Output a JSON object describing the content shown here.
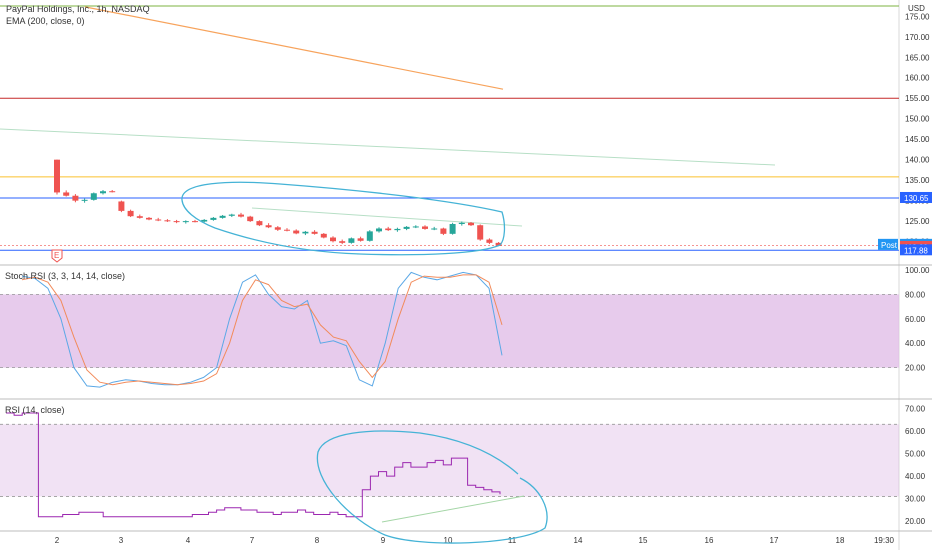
{
  "header": {
    "main_title": "PayPal Holdings, Inc., 1h, NASDAQ",
    "main_indicator": "EMA (200, close, 0)",
    "currency": "USD",
    "stoch_title": "Stoch RSI (3, 3, 14, 14, close)",
    "rsi_title": "RSI (14, close)",
    "earnings_marker": "E"
  },
  "colors": {
    "up": "#26a69a",
    "down": "#ef5350",
    "ema": "#f7a35c",
    "stoch_k": "#5ba8e6",
    "stoch_d": "#f28b5b",
    "rsi": "#9c27b0",
    "band": "#e1bee7",
    "annotation": "#45b3d6"
  },
  "chart_data": [
    {
      "type": "candlestick",
      "title": "PayPal Holdings, Inc., 1h, NASDAQ",
      "ylim": [
        116,
        178
      ],
      "y_ticks": [
        120,
        125,
        130,
        135,
        140,
        145,
        150,
        155,
        160,
        165,
        170,
        175
      ],
      "x_ticks": [
        "2",
        "3",
        "4",
        "7",
        "8",
        "9",
        "10",
        "11",
        "14",
        "15",
        "16",
        "17",
        "18",
        "19:30"
      ],
      "price_tags": [
        {
          "label": "130.65",
          "value": 130.65,
          "color": "#2962ff"
        },
        {
          "label": "Post",
          "value": 119.21,
          "color": "#2196f3"
        },
        {
          "label": "119.21",
          "value": 119.21,
          "color": "#2196f3"
        },
        {
          "label": "119.00",
          "value": 118.7,
          "color": "#ef5350"
        },
        {
          "label": "117.88",
          "value": 117.88,
          "color": "#2962ff"
        }
      ],
      "horizontal_lines": [
        {
          "value": 177.5,
          "color": "#7cb342"
        },
        {
          "value": 155.0,
          "color": "#c62828"
        },
        {
          "value": 135.8,
          "color": "#fbc02d"
        },
        {
          "value": 130.65,
          "color": "#2962ff"
        },
        {
          "value": 117.88,
          "color": "#2962ff"
        }
      ],
      "candles": [
        {
          "o": 140.0,
          "h": 140.0,
          "l": 131.5,
          "c": 132.0
        },
        {
          "o": 132.0,
          "h": 132.5,
          "l": 131.0,
          "c": 131.2
        },
        {
          "o": 131.2,
          "h": 131.6,
          "l": 129.6,
          "c": 130.0
        },
        {
          "o": 130.0,
          "h": 130.5,
          "l": 129.5,
          "c": 130.2
        },
        {
          "o": 130.2,
          "h": 132.0,
          "l": 130.0,
          "c": 131.8
        },
        {
          "o": 131.8,
          "h": 132.6,
          "l": 131.5,
          "c": 132.3
        },
        {
          "o": 132.3,
          "h": 132.6,
          "l": 132.0,
          "c": 132.1
        },
        {
          "o": 129.8,
          "h": 130.0,
          "l": 127.2,
          "c": 127.5
        },
        {
          "o": 127.5,
          "h": 127.8,
          "l": 126.0,
          "c": 126.2
        },
        {
          "o": 126.2,
          "h": 126.6,
          "l": 125.6,
          "c": 125.8
        },
        {
          "o": 125.8,
          "h": 126.0,
          "l": 125.2,
          "c": 125.4
        },
        {
          "o": 125.4,
          "h": 125.8,
          "l": 125.0,
          "c": 125.2
        },
        {
          "o": 125.2,
          "h": 125.5,
          "l": 124.8,
          "c": 125.0
        },
        {
          "o": 125.0,
          "h": 125.3,
          "l": 124.5,
          "c": 124.8
        },
        {
          "o": 124.8,
          "h": 125.2,
          "l": 124.4,
          "c": 125.0
        },
        {
          "o": 125.0,
          "h": 125.3,
          "l": 124.7,
          "c": 124.9
        },
        {
          "o": 124.9,
          "h": 125.5,
          "l": 124.7,
          "c": 125.3
        },
        {
          "o": 125.3,
          "h": 126.0,
          "l": 125.1,
          "c": 125.8
        },
        {
          "o": 125.8,
          "h": 126.5,
          "l": 125.6,
          "c": 126.3
        },
        {
          "o": 126.3,
          "h": 126.8,
          "l": 126.0,
          "c": 126.6
        },
        {
          "o": 126.6,
          "h": 127.0,
          "l": 125.9,
          "c": 126.1
        },
        {
          "o": 126.1,
          "h": 126.3,
          "l": 124.8,
          "c": 125.0
        },
        {
          "o": 125.0,
          "h": 125.2,
          "l": 123.8,
          "c": 124.0
        },
        {
          "o": 124.0,
          "h": 124.5,
          "l": 123.3,
          "c": 123.5
        },
        {
          "o": 123.5,
          "h": 123.8,
          "l": 122.6,
          "c": 122.9
        },
        {
          "o": 122.9,
          "h": 123.3,
          "l": 122.5,
          "c": 122.7
        },
        {
          "o": 122.7,
          "h": 123.0,
          "l": 121.8,
          "c": 122.0
        },
        {
          "o": 122.0,
          "h": 122.6,
          "l": 121.6,
          "c": 122.4
        },
        {
          "o": 122.4,
          "h": 122.8,
          "l": 121.7,
          "c": 121.9
        },
        {
          "o": 121.9,
          "h": 122.1,
          "l": 120.8,
          "c": 121.0
        },
        {
          "o": 121.0,
          "h": 121.3,
          "l": 119.8,
          "c": 120.1
        },
        {
          "o": 120.1,
          "h": 120.5,
          "l": 119.4,
          "c": 119.7
        },
        {
          "o": 119.7,
          "h": 121.0,
          "l": 119.5,
          "c": 120.8
        },
        {
          "o": 120.8,
          "h": 121.2,
          "l": 120.0,
          "c": 120.2
        },
        {
          "o": 120.2,
          "h": 122.8,
          "l": 120.0,
          "c": 122.5
        },
        {
          "o": 122.5,
          "h": 123.5,
          "l": 122.2,
          "c": 123.2
        },
        {
          "o": 123.2,
          "h": 123.6,
          "l": 122.6,
          "c": 122.8
        },
        {
          "o": 122.8,
          "h": 123.4,
          "l": 122.4,
          "c": 123.1
        },
        {
          "o": 123.1,
          "h": 123.8,
          "l": 122.8,
          "c": 123.6
        },
        {
          "o": 123.6,
          "h": 124.0,
          "l": 123.3,
          "c": 123.7
        },
        {
          "o": 123.7,
          "h": 124.0,
          "l": 122.9,
          "c": 123.1
        },
        {
          "o": 123.1,
          "h": 123.6,
          "l": 122.8,
          "c": 123.2
        },
        {
          "o": 123.2,
          "h": 123.4,
          "l": 121.6,
          "c": 121.9
        },
        {
          "o": 121.9,
          "h": 124.6,
          "l": 121.7,
          "c": 124.3
        },
        {
          "o": 124.3,
          "h": 124.9,
          "l": 123.9,
          "c": 124.6
        },
        {
          "o": 124.6,
          "h": 124.8,
          "l": 123.8,
          "c": 124.0
        },
        {
          "o": 124.0,
          "h": 124.2,
          "l": 120.2,
          "c": 120.5
        },
        {
          "o": 120.5,
          "h": 120.8,
          "l": 119.4,
          "c": 119.7
        },
        {
          "o": 119.7,
          "h": 119.9,
          "l": 118.9,
          "c": 119.0
        }
      ]
    },
    {
      "type": "line",
      "title": "Stoch RSI (3, 3, 14, 14, close)",
      "ylim": [
        0,
        100
      ],
      "y_ticks": [
        20,
        40,
        60,
        80,
        100
      ],
      "band": [
        20,
        80
      ],
      "series": [
        {
          "name": "K",
          "values": [
            95,
            93,
            85,
            60,
            20,
            5,
            4,
            8,
            10,
            9,
            7,
            6,
            6,
            8,
            12,
            20,
            60,
            90,
            96,
            80,
            70,
            68,
            75,
            40,
            42,
            38,
            10,
            5,
            40,
            85,
            98,
            94,
            92,
            95,
            98,
            96,
            85,
            30
          ]
        },
        {
          "name": "D",
          "values": [
            92,
            94,
            90,
            75,
            45,
            18,
            8,
            6,
            8,
            9,
            8,
            7,
            6,
            7,
            9,
            15,
            40,
            75,
            92,
            88,
            75,
            70,
            72,
            55,
            45,
            42,
            25,
            12,
            25,
            60,
            90,
            95,
            94,
            94,
            96,
            96,
            90,
            55
          ]
        }
      ]
    },
    {
      "type": "line",
      "title": "RSI (14, close)",
      "ylim": [
        17,
        72
      ],
      "y_ticks": [
        20,
        30,
        40,
        50,
        60,
        70
      ],
      "band": [
        30,
        70
      ],
      "series": [
        {
          "name": "RSI",
          "values": [
            68,
            67,
            68,
            68,
            22,
            22,
            22,
            23,
            23,
            24,
            24,
            24,
            22,
            22,
            22,
            22,
            22,
            22,
            22,
            22,
            22,
            22,
            22,
            23,
            23,
            24,
            25,
            26,
            26,
            25,
            25,
            24,
            24,
            23,
            24,
            24,
            25,
            24,
            23,
            23,
            24,
            23,
            22,
            22,
            34,
            40,
            42,
            40,
            44,
            46,
            44,
            44,
            46,
            47,
            45,
            48,
            48,
            36,
            35,
            34,
            33,
            32
          ]
        }
      ]
    }
  ]
}
